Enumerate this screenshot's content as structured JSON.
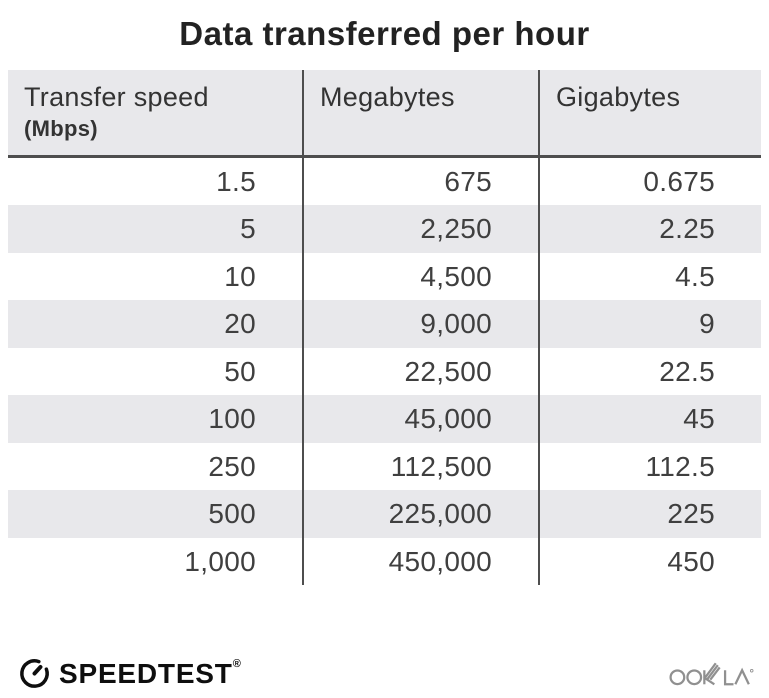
{
  "title": "Data transferred per hour",
  "table": {
    "columns": [
      {
        "label": "Transfer speed",
        "sublabel": "(Mbps)"
      },
      {
        "label": "Megabytes"
      },
      {
        "label": "Gigabytes"
      }
    ],
    "rows": [
      [
        "1.5",
        "675",
        "0.675"
      ],
      [
        "5",
        "2,250",
        "2.25"
      ],
      [
        "10",
        "4,500",
        "4.5"
      ],
      [
        "20",
        "9,000",
        "9"
      ],
      [
        "50",
        "22,500",
        "22.5"
      ],
      [
        "100",
        "45,000",
        "45"
      ],
      [
        "250",
        "112,500",
        "112.5"
      ],
      [
        "500",
        "225,000",
        "225"
      ],
      [
        "1,000",
        "450,000",
        "450"
      ]
    ]
  },
  "chart_data": {
    "type": "table",
    "title": "Data transferred per hour",
    "columns": [
      "Transfer speed (Mbps)",
      "Megabytes",
      "Gigabytes"
    ],
    "rows": [
      [
        1.5,
        675,
        0.675
      ],
      [
        5,
        2250,
        2.25
      ],
      [
        10,
        4500,
        4.5
      ],
      [
        20,
        9000,
        9
      ],
      [
        50,
        22500,
        22.5
      ],
      [
        100,
        45000,
        45
      ],
      [
        250,
        112500,
        112.5
      ],
      [
        500,
        225000,
        225
      ],
      [
        1000,
        450000,
        450
      ]
    ]
  },
  "footer": {
    "speedtest_label": "SPEEDTEST",
    "speedtest_registered": "®",
    "ookla_label": "OOKLA",
    "ookla_registered": "®"
  },
  "colors": {
    "header_bg": "#E8E8EB",
    "stripe_bg": "#E8E8EB",
    "divider": "#4E4E4E",
    "title_text": "#222222",
    "header_text": "#333333",
    "body_text": "#3F3F3F",
    "ookla_gray": "#909090",
    "speedtest_black": "#0E0E0E",
    "page_bg": "#FFFFFF"
  }
}
